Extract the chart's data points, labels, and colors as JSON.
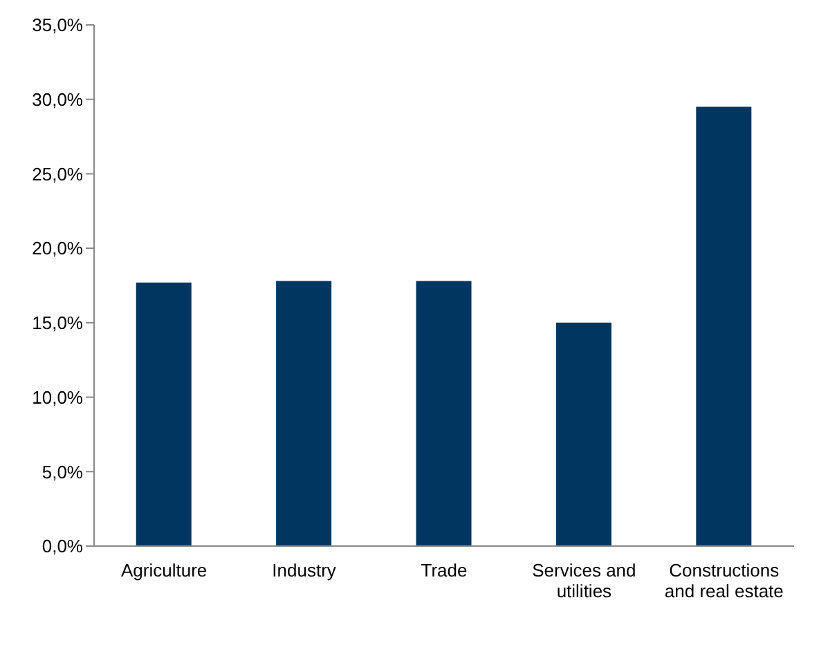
{
  "chart_data": {
    "type": "bar",
    "categories": [
      "Agriculture",
      "Industry",
      "Trade",
      "Services and utilities",
      "Constructions and real estate"
    ],
    "values": [
      17.7,
      17.8,
      17.8,
      15.0,
      29.5
    ],
    "color": "#003660",
    "ylim": [
      0,
      35
    ],
    "yticks": [
      {
        "value": 0,
        "label": "0,0%"
      },
      {
        "value": 5,
        "label": "5,0%"
      },
      {
        "value": 10,
        "label": "10,0%"
      },
      {
        "value": 15,
        "label": "15,0%"
      },
      {
        "value": 20,
        "label": "20,0%"
      },
      {
        "value": 25,
        "label": "25,0%"
      },
      {
        "value": 30,
        "label": "30,0%"
      },
      {
        "value": 35,
        "label": "35,0%"
      }
    ],
    "grid": false,
    "legend": false
  }
}
